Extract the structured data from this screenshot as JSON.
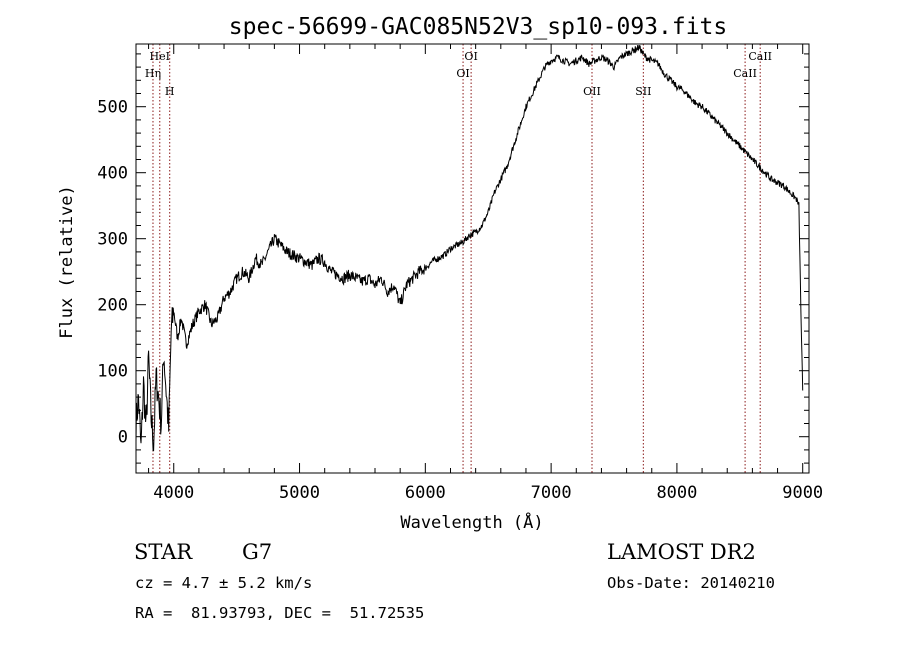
{
  "chart_data": {
    "type": "line",
    "title": "spec-56699-GAC085N52V3_sp10-093.fits",
    "xlabel": "Wavelength (Å)",
    "ylabel": "Flux (relative)",
    "xlim": [
      3700,
      9050
    ],
    "ylim": [
      -55,
      595
    ],
    "xticks": [
      4000,
      5000,
      6000,
      7000,
      8000,
      9000
    ],
    "yticks": [
      0,
      100,
      200,
      300,
      400,
      500
    ],
    "grid": false,
    "line_color": "#000000",
    "marker_color": "#8b1a1a",
    "series": [
      {
        "x": [
          3700,
          3720,
          3740,
          3760,
          3780,
          3800,
          3820,
          3840,
          3860,
          3880,
          3900,
          3920,
          3940,
          3960,
          3980,
          4000,
          4030,
          4060,
          4100,
          4150,
          4200,
          4250,
          4300,
          4350,
          4400,
          4450,
          4500,
          4550,
          4600,
          4650,
          4700,
          4750,
          4800,
          4850,
          4900,
          4950,
          5000,
          5050,
          5100,
          5150,
          5200,
          5250,
          5300,
          5350,
          5400,
          5450,
          5500,
          5550,
          5600,
          5650,
          5700,
          5750,
          5800,
          5850,
          5900,
          5950,
          6000,
          6050,
          6100,
          6150,
          6200,
          6250,
          6300,
          6350,
          6400,
          6450,
          6500,
          6550,
          6600,
          6650,
          6700,
          6750,
          6800,
          6850,
          6900,
          6950,
          7000,
          7050,
          7100,
          7150,
          7200,
          7250,
          7300,
          7350,
          7400,
          7450,
          7500,
          7550,
          7600,
          7650,
          7700,
          7750,
          7800,
          7850,
          7900,
          7950,
          8000,
          8050,
          8100,
          8150,
          8200,
          8250,
          8300,
          8350,
          8400,
          8450,
          8500,
          8550,
          8600,
          8650,
          8700,
          8750,
          8800,
          8850,
          8900,
          8950,
          8970,
          8990,
          9000
        ],
        "y": [
          20,
          60,
          -20,
          80,
          10,
          120,
          30,
          -10,
          90,
          60,
          20,
          130,
          70,
          10,
          160,
          190,
          150,
          180,
          140,
          170,
          190,
          200,
          170,
          180,
          210,
          220,
          240,
          250,
          240,
          270,
          260,
          280,
          300,
          290,
          280,
          275,
          270,
          265,
          260,
          270,
          265,
          250,
          245,
          240,
          245,
          240,
          235,
          240,
          230,
          240,
          220,
          230,
          200,
          230,
          240,
          250,
          255,
          265,
          270,
          275,
          285,
          290,
          295,
          305,
          310,
          320,
          340,
          370,
          390,
          410,
          440,
          470,
          500,
          520,
          540,
          560,
          570,
          575,
          570,
          565,
          570,
          575,
          565,
          570,
          575,
          570,
          560,
          575,
          580,
          585,
          590,
          575,
          570,
          565,
          550,
          540,
          530,
          525,
          515,
          505,
          500,
          490,
          480,
          470,
          460,
          450,
          440,
          430,
          420,
          410,
          400,
          390,
          385,
          380,
          370,
          360,
          350,
          150,
          70
        ]
      }
    ],
    "spectral_lines": [
      {
        "label": "HeI",
        "x": 3889,
        "pos": "top"
      },
      {
        "label": "Hη",
        "x": 3835,
        "pos": "upper"
      },
      {
        "label": "H",
        "x": 3968,
        "pos": "mid"
      },
      {
        "label": "OI",
        "x": 6364,
        "pos": "top"
      },
      {
        "label": "OI",
        "x": 6300,
        "pos": "upper"
      },
      {
        "label": "OII",
        "x": 7325,
        "pos": "mid"
      },
      {
        "label": "SII",
        "x": 7733,
        "pos": "mid"
      },
      {
        "label": "CaII",
        "x": 8662,
        "pos": "top"
      },
      {
        "label": "CaII",
        "x": 8542,
        "pos": "upper"
      }
    ]
  },
  "info": {
    "object_class": "STAR",
    "subclass": "G7",
    "survey": "LAMOST DR2",
    "cz": "cz = 4.7 ± 5.2 km/s",
    "obs_date": "Obs-Date: 20140210",
    "coords": "RA =  81.93793, DEC =  51.72535"
  }
}
